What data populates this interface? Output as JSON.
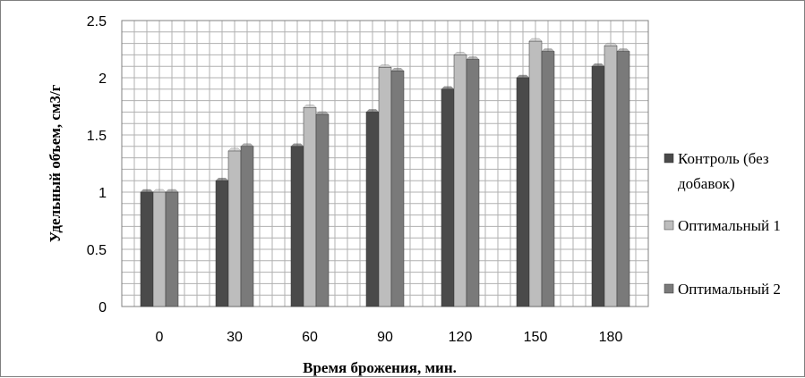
{
  "chart_data": {
    "type": "bar",
    "categories": [
      "0",
      "30",
      "60",
      "90",
      "120",
      "150",
      "180"
    ],
    "series": [
      {
        "name": "Контроль (без добавок)",
        "name_lines": [
          "Контроль (без",
          "добавок)"
        ],
        "values": [
          1.0,
          1.1,
          1.4,
          1.7,
          1.9,
          2.0,
          2.1
        ],
        "color": "#4a4a4a"
      },
      {
        "name": "Оптимальный 1",
        "name_lines": [
          "Оптимальный 1"
        ],
        "values": [
          1.0,
          1.36,
          1.74,
          2.09,
          2.2,
          2.32,
          2.28
        ],
        "color": "#bdbdbd"
      },
      {
        "name": "Оптимальный 2",
        "name_lines": [
          "Оптимальный 2"
        ],
        "values": [
          1.0,
          1.4,
          1.68,
          2.06,
          2.16,
          2.23,
          2.23
        ],
        "color": "#7a7a7a"
      }
    ],
    "xlabel": "Время брожения, мин.",
    "ylabel": "Удельный объем, см3/г",
    "ylim": [
      0,
      2.5
    ],
    "yticks": [
      "0",
      "0.5",
      "1",
      "1.5",
      "2",
      "2.5"
    ],
    "grid": true,
    "legend_position": "right"
  }
}
